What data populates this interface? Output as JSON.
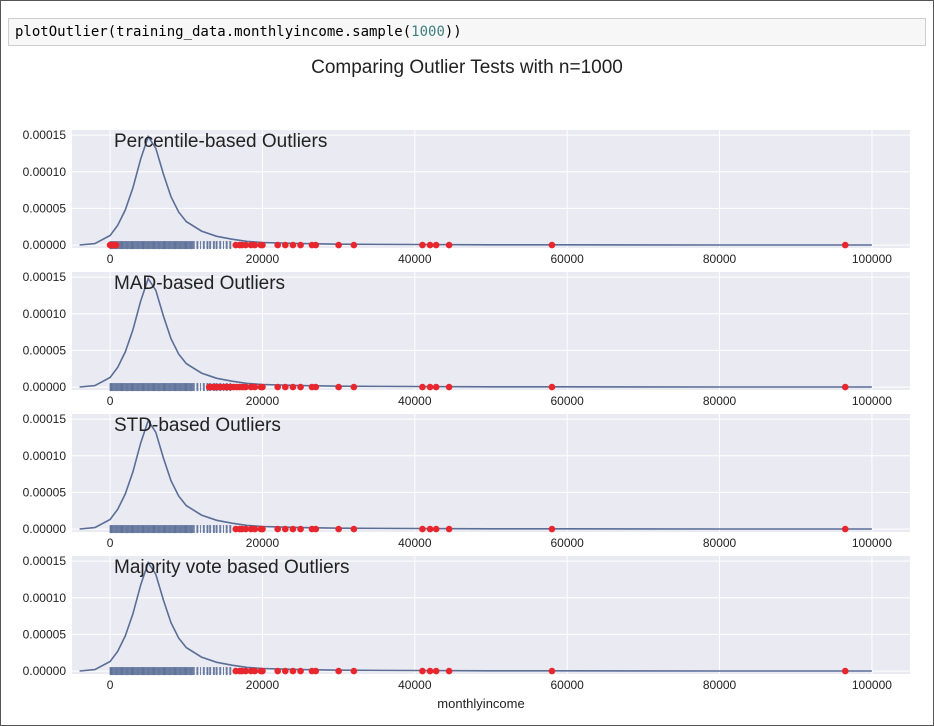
{
  "code": {
    "prefix": "plotOutlier(training_data.monthlyincome.sample(",
    "number": "1000",
    "suffix": "))"
  },
  "figure_title": "Comparing Outlier Tests with n=1000",
  "colors": {
    "panel_bg": "#eaeaf2",
    "kde_line": "#5a6e96",
    "rug": "#5a6e96",
    "outlier": "#e8262e",
    "grid": "#ffffff"
  },
  "chart_data": [
    {
      "type": "line",
      "title": "Percentile-based Outliers",
      "xlabel": "",
      "ylabel": "",
      "xlim": [
        -5000,
        105000
      ],
      "ylim": [
        -4e-06,
        0.000157
      ],
      "xticks": [
        0,
        20000,
        40000,
        60000,
        80000,
        100000
      ],
      "xtick_labels": [
        "0",
        "20000",
        "40000",
        "60000",
        "80000",
        "100000"
      ],
      "yticks": [
        0,
        5e-05,
        0.0001,
        0.00015
      ],
      "ytick_labels": [
        "0.00000",
        "0.00005",
        "0.00010",
        "0.00015"
      ],
      "grid": true,
      "series": [
        {
          "kind": "kde",
          "x": [
            -4000,
            -2000,
            0,
            1000,
            2000,
            3000,
            4000,
            5000,
            6000,
            7000,
            8000,
            9000,
            10000,
            12000,
            14000,
            16000,
            18000,
            20000,
            25000,
            30000,
            40000,
            50000,
            60000,
            80000,
            100000
          ],
          "y": [
            1e-07,
            2e-06,
            1.3e-05,
            2.7e-05,
            4.8e-05,
            7.8e-05,
            0.000117,
            0.000148,
            0.000132,
            9.7e-05,
            6.6e-05,
            4.5e-05,
            3.2e-05,
            1.9e-05,
            1.2e-05,
            8e-06,
            5e-06,
            3.5e-06,
            2e-06,
            1.2e-06,
            8e-07,
            4e-07,
            3e-07,
            1e-07,
            1e-07
          ]
        },
        {
          "kind": "rug",
          "range": [
            0,
            16000
          ]
        },
        {
          "kind": "outliers",
          "x": [
            0,
            200,
            400,
            600,
            800,
            16500,
            17000,
            17300,
            17800,
            18500,
            19000,
            19800,
            20000,
            22000,
            23000,
            24000,
            25000,
            26500,
            27000,
            30000,
            32000,
            41000,
            42000,
            42800,
            44500,
            58000,
            96500
          ]
        }
      ]
    },
    {
      "type": "line",
      "title": "MAD-based Outliers",
      "xlabel": "",
      "ylabel": "",
      "xlim": [
        -5000,
        105000
      ],
      "ylim": [
        -4e-06,
        0.000157
      ],
      "xticks": [
        0,
        20000,
        40000,
        60000,
        80000,
        100000
      ],
      "xtick_labels": [
        "0",
        "20000",
        "40000",
        "60000",
        "80000",
        "100000"
      ],
      "yticks": [
        0,
        5e-05,
        0.0001,
        0.00015
      ],
      "ytick_labels": [
        "0.00000",
        "0.00005",
        "0.00010",
        "0.00015"
      ],
      "grid": true,
      "series": [
        {
          "kind": "kde",
          "x": [
            -4000,
            -2000,
            0,
            1000,
            2000,
            3000,
            4000,
            5000,
            6000,
            7000,
            8000,
            9000,
            10000,
            12000,
            14000,
            16000,
            18000,
            20000,
            25000,
            30000,
            40000,
            50000,
            60000,
            80000,
            100000
          ],
          "y": [
            1e-07,
            2e-06,
            1.3e-05,
            2.7e-05,
            4.8e-05,
            7.8e-05,
            0.000117,
            0.000148,
            0.000132,
            9.7e-05,
            6.6e-05,
            4.5e-05,
            3.2e-05,
            1.9e-05,
            1.2e-05,
            8e-06,
            5e-06,
            3.5e-06,
            2e-06,
            1.2e-06,
            8e-07,
            4e-07,
            3e-07,
            1e-07,
            1e-07
          ]
        },
        {
          "kind": "rug",
          "range": [
            0,
            16000
          ]
        },
        {
          "kind": "outliers",
          "x": [
            13000,
            13400,
            13800,
            14200,
            14600,
            15000,
            15400,
            15800,
            16200,
            16600,
            17000,
            17400,
            17800,
            18500,
            19000,
            19800,
            20000,
            22000,
            23000,
            24000,
            25000,
            26500,
            27000,
            30000,
            32000,
            41000,
            42000,
            42800,
            44500,
            58000,
            96500
          ]
        }
      ]
    },
    {
      "type": "line",
      "title": "STD-based Outliers",
      "xlabel": "",
      "ylabel": "",
      "xlim": [
        -5000,
        105000
      ],
      "ylim": [
        -4e-06,
        0.000157
      ],
      "xticks": [
        0,
        20000,
        40000,
        60000,
        80000,
        100000
      ],
      "xtick_labels": [
        "0",
        "20000",
        "40000",
        "60000",
        "80000",
        "100000"
      ],
      "yticks": [
        0,
        5e-05,
        0.0001,
        0.00015
      ],
      "ytick_labels": [
        "0.00000",
        "0.00005",
        "0.00010",
        "0.00015"
      ],
      "grid": true,
      "series": [
        {
          "kind": "kde",
          "x": [
            -4000,
            -2000,
            0,
            1000,
            2000,
            3000,
            4000,
            5000,
            6000,
            7000,
            8000,
            9000,
            10000,
            12000,
            14000,
            16000,
            18000,
            20000,
            25000,
            30000,
            40000,
            50000,
            60000,
            80000,
            100000
          ],
          "y": [
            1e-07,
            2e-06,
            1.3e-05,
            2.7e-05,
            4.8e-05,
            7.8e-05,
            0.000117,
            0.000148,
            0.000132,
            9.7e-05,
            6.6e-05,
            4.5e-05,
            3.2e-05,
            1.9e-05,
            1.2e-05,
            8e-06,
            5e-06,
            3.5e-06,
            2e-06,
            1.2e-06,
            8e-07,
            4e-07,
            3e-07,
            1e-07,
            1e-07
          ]
        },
        {
          "kind": "rug",
          "range": [
            0,
            16000
          ]
        },
        {
          "kind": "outliers",
          "x": [
            16500,
            17000,
            17300,
            17800,
            18500,
            19000,
            19800,
            20000,
            22000,
            23000,
            24000,
            25000,
            26500,
            27000,
            30000,
            32000,
            41000,
            42000,
            42800,
            44500,
            58000,
            96500
          ]
        }
      ]
    },
    {
      "type": "line",
      "title": "Majority vote based Outliers",
      "xlabel": "monthlyincome",
      "ylabel": "",
      "xlim": [
        -5000,
        105000
      ],
      "ylim": [
        -4e-06,
        0.000157
      ],
      "xticks": [
        0,
        20000,
        40000,
        60000,
        80000,
        100000
      ],
      "xtick_labels": [
        "0",
        "20000",
        "40000",
        "60000",
        "80000",
        "100000"
      ],
      "yticks": [
        0,
        5e-05,
        0.0001,
        0.00015
      ],
      "ytick_labels": [
        "0.00000",
        "0.00005",
        "0.00010",
        "0.00015"
      ],
      "grid": true,
      "series": [
        {
          "kind": "kde",
          "x": [
            -4000,
            -2000,
            0,
            1000,
            2000,
            3000,
            4000,
            5000,
            6000,
            7000,
            8000,
            9000,
            10000,
            12000,
            14000,
            16000,
            18000,
            20000,
            25000,
            30000,
            40000,
            50000,
            60000,
            80000,
            100000
          ],
          "y": [
            1e-07,
            2e-06,
            1.3e-05,
            2.7e-05,
            4.8e-05,
            7.8e-05,
            0.000117,
            0.000148,
            0.000132,
            9.7e-05,
            6.6e-05,
            4.5e-05,
            3.2e-05,
            1.9e-05,
            1.2e-05,
            8e-06,
            5e-06,
            3.5e-06,
            2e-06,
            1.2e-06,
            8e-07,
            4e-07,
            3e-07,
            1e-07,
            1e-07
          ]
        },
        {
          "kind": "rug",
          "range": [
            0,
            16000
          ]
        },
        {
          "kind": "outliers",
          "x": [
            16500,
            17000,
            17300,
            17800,
            18500,
            19000,
            19800,
            20000,
            22000,
            23000,
            24000,
            25000,
            26500,
            27000,
            30000,
            32000,
            41000,
            42000,
            42800,
            44500,
            58000,
            96500
          ]
        }
      ]
    }
  ]
}
